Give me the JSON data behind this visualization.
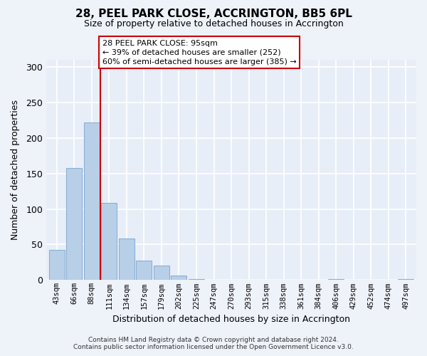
{
  "title": "28, PEEL PARK CLOSE, ACCRINGTON, BB5 6PL",
  "subtitle": "Size of property relative to detached houses in Accrington",
  "xlabel": "Distribution of detached houses by size in Accrington",
  "ylabel": "Number of detached properties",
  "bar_labels": [
    "43sqm",
    "66sqm",
    "88sqm",
    "111sqm",
    "134sqm",
    "157sqm",
    "179sqm",
    "202sqm",
    "225sqm",
    "247sqm",
    "270sqm",
    "293sqm",
    "315sqm",
    "338sqm",
    "361sqm",
    "384sqm",
    "406sqm",
    "429sqm",
    "452sqm",
    "474sqm",
    "497sqm"
  ],
  "bar_values": [
    42,
    158,
    222,
    109,
    58,
    27,
    20,
    6,
    1,
    0,
    0,
    0,
    0,
    0,
    0,
    0,
    1,
    0,
    0,
    0,
    1
  ],
  "bar_color": "#b8cfe8",
  "bar_edge_color": "#8aafd4",
  "vline_x": 2.5,
  "vline_color": "#cc0000",
  "annotation_title": "28 PEEL PARK CLOSE: 95sqm",
  "annotation_line1": "← 39% of detached houses are smaller (252)",
  "annotation_line2": "60% of semi-detached houses are larger (385) →",
  "annotation_box_color": "#ffffff",
  "annotation_box_edge": "#cc0000",
  "ylim": [
    0,
    310
  ],
  "yticks": [
    0,
    50,
    100,
    150,
    200,
    250,
    300
  ],
  "footer_line1": "Contains HM Land Registry data © Crown copyright and database right 2024.",
  "footer_line2": "Contains public sector information licensed under the Open Government Licence v3.0.",
  "bg_color": "#eef2f9",
  "plot_bg_color": "#e8eef8",
  "grid_color": "#ffffff"
}
